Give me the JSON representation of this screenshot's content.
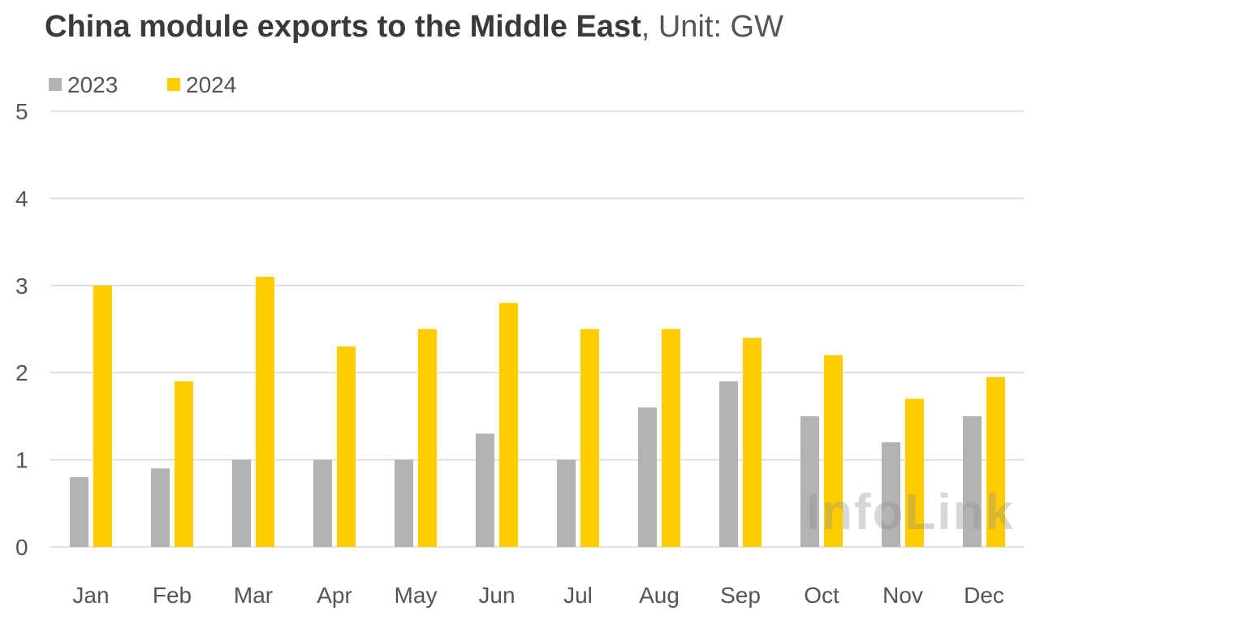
{
  "chart_data": {
    "type": "bar",
    "title": "China module exports to the Middle East",
    "title_suffix": ", Unit: GW",
    "categories": [
      "Jan",
      "Feb",
      "Mar",
      "Apr",
      "May",
      "Jun",
      "Jul",
      "Aug",
      "Sep",
      "Oct",
      "Nov",
      "Dec"
    ],
    "series": [
      {
        "name": "2023",
        "color": "#b3b3b3",
        "values": [
          0.8,
          0.9,
          1.0,
          1.0,
          1.0,
          1.3,
          1.0,
          1.6,
          1.9,
          1.5,
          1.2,
          1.5
        ]
      },
      {
        "name": "2024",
        "color": "#ffcc00",
        "values": [
          3.0,
          1.9,
          3.1,
          2.3,
          2.5,
          2.8,
          2.5,
          2.5,
          2.4,
          2.2,
          1.7,
          1.95
        ]
      }
    ],
    "yticks": [
      0,
      1,
      2,
      3,
      4,
      5
    ],
    "ylim": [
      0,
      5
    ],
    "grid": true,
    "legend_position": "top-left",
    "watermark": "InfoLink"
  }
}
